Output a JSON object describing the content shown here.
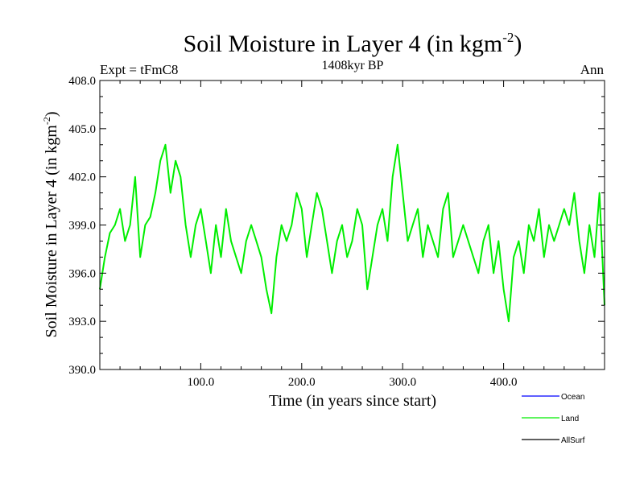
{
  "chart_data": {
    "type": "line",
    "title": "Soil Moisture in Layer 4 (in kgm",
    "title_sup": "-2",
    "title_close": ")",
    "subtitle": "1408kyr BP",
    "left_label": "Expt = tFmC8",
    "right_label": "Ann",
    "xlabel": "Time (in years since start)",
    "ylabel": "Soil Moisture in Layer 4 (in kgm",
    "ylabel_sup": "-2",
    "ylabel_close": ")",
    "xlim": [
      0,
      500
    ],
    "ylim": [
      390,
      408
    ],
    "x_ticks": [
      {
        "value": 100,
        "label": "100.0"
      },
      {
        "value": 200,
        "label": "200.0"
      },
      {
        "value": 300,
        "label": "300.0"
      },
      {
        "value": 400,
        "label": "400.0"
      }
    ],
    "y_ticks": [
      {
        "value": 390,
        "label": "390.0"
      },
      {
        "value": 393,
        "label": "393.0"
      },
      {
        "value": 396,
        "label": "396.0"
      },
      {
        "value": 399,
        "label": "399.0"
      },
      {
        "value": 402,
        "label": "402.0"
      },
      {
        "value": 405,
        "label": "405.0"
      },
      {
        "value": 408,
        "label": "408.0"
      }
    ],
    "legend": [
      {
        "name": "Ocean",
        "color": "#0000ff"
      },
      {
        "name": "Land",
        "color": "#00ee00"
      },
      {
        "name": "AllSurf",
        "color": "#000000"
      }
    ],
    "series": [
      {
        "name": "Land",
        "color": "#00ee00",
        "x": [
          0,
          5,
          10,
          15,
          20,
          25,
          30,
          35,
          40,
          45,
          50,
          55,
          60,
          65,
          70,
          75,
          80,
          85,
          90,
          95,
          100,
          105,
          110,
          115,
          120,
          125,
          130,
          135,
          140,
          145,
          150,
          155,
          160,
          165,
          170,
          175,
          180,
          185,
          190,
          195,
          200,
          205,
          210,
          215,
          220,
          225,
          230,
          235,
          240,
          245,
          250,
          255,
          260,
          265,
          270,
          275,
          280,
          285,
          290,
          295,
          300,
          305,
          310,
          315,
          320,
          325,
          330,
          335,
          340,
          345,
          350,
          355,
          360,
          365,
          370,
          375,
          380,
          385,
          390,
          395,
          400,
          405,
          410,
          415,
          420,
          425,
          430,
          435,
          440,
          445,
          450,
          455,
          460,
          465,
          470,
          475,
          480,
          485,
          490,
          495,
          500
        ],
        "values": [
          395,
          397,
          398.5,
          399,
          400,
          398,
          399,
          402,
          397,
          399,
          399.5,
          401,
          403,
          404,
          401,
          403,
          402,
          399,
          397,
          399,
          400,
          398,
          396,
          399,
          397,
          400,
          398,
          397,
          396,
          398,
          399,
          398,
          397,
          395,
          393.5,
          397,
          399,
          398,
          399,
          401,
          400,
          397,
          399,
          401,
          400,
          398,
          396,
          398,
          399,
          397,
          398,
          400,
          399,
          395,
          397,
          399,
          400,
          398,
          402,
          404,
          401,
          398,
          399,
          400,
          397,
          399,
          398,
          397,
          400,
          401,
          397,
          398,
          399,
          398,
          397,
          396,
          398,
          399,
          396,
          398,
          395,
          393,
          397,
          398,
          396,
          399,
          398,
          400,
          397,
          399,
          398,
          399,
          400,
          399,
          401,
          398,
          396,
          399,
          397,
          401,
          394
        ]
      }
    ]
  }
}
